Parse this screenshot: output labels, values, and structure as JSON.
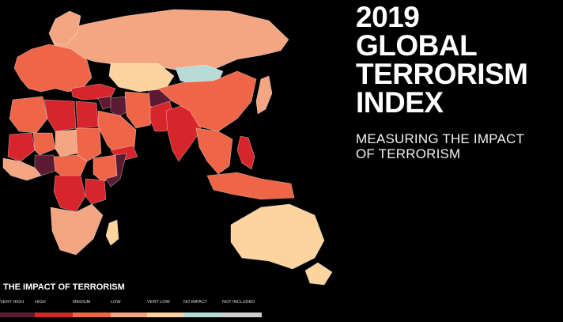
{
  "title": {
    "lines": [
      "2019",
      "GLOBAL",
      "TERRORISM",
      "INDEX"
    ],
    "subtitle_lines": [
      "MEASURING THE IMPACT",
      "OF TERRORISM"
    ]
  },
  "legend": {
    "title": "THE IMPACT OF TERRORISM",
    "items": [
      {
        "label": "VERY HIGH",
        "color": "#5c1a33"
      },
      {
        "label": "HIGH",
        "color": "#d7262b"
      },
      {
        "label": "MEDIUM",
        "color": "#ef6548"
      },
      {
        "label": "LOW",
        "color": "#f4a582"
      },
      {
        "label": "VERY LOW",
        "color": "#fdd49e"
      },
      {
        "label": "NO IMPACT",
        "color": "#b7dcd8"
      },
      {
        "label": "NOT INCLUDED",
        "color": "#cfcfcf"
      }
    ]
  },
  "regions": [
    {
      "name": "russia",
      "level": "LOW"
    },
    {
      "name": "scandinavia",
      "level": "LOW"
    },
    {
      "name": "europe",
      "level": "MEDIUM"
    },
    {
      "name": "turkey",
      "level": "HIGH"
    },
    {
      "name": "syria",
      "level": "VERY HIGH"
    },
    {
      "name": "iraq",
      "level": "VERY HIGH"
    },
    {
      "name": "iran",
      "level": "MEDIUM"
    },
    {
      "name": "saudi-arabia",
      "level": "MEDIUM"
    },
    {
      "name": "yemen",
      "level": "HIGH"
    },
    {
      "name": "afghanistan",
      "level": "VERY HIGH"
    },
    {
      "name": "pakistan",
      "level": "HIGH"
    },
    {
      "name": "india",
      "level": "HIGH"
    },
    {
      "name": "kazakhstan",
      "level": "VERY LOW"
    },
    {
      "name": "mongolia",
      "level": "NO IMPACT"
    },
    {
      "name": "china",
      "level": "MEDIUM"
    },
    {
      "name": "japan",
      "level": "LOW"
    },
    {
      "name": "southeast-asia",
      "level": "MEDIUM"
    },
    {
      "name": "philippines",
      "level": "HIGH"
    },
    {
      "name": "indonesia",
      "level": "MEDIUM"
    },
    {
      "name": "australia",
      "level": "VERY LOW"
    },
    {
      "name": "new-zealand",
      "level": "VERY LOW"
    },
    {
      "name": "algeria",
      "level": "MEDIUM"
    },
    {
      "name": "libya",
      "level": "HIGH"
    },
    {
      "name": "egypt",
      "level": "HIGH"
    },
    {
      "name": "mali",
      "level": "HIGH"
    },
    {
      "name": "niger",
      "level": "MEDIUM"
    },
    {
      "name": "chad",
      "level": "LOW"
    },
    {
      "name": "sudan",
      "level": "MEDIUM"
    },
    {
      "name": "ethiopia",
      "level": "MEDIUM"
    },
    {
      "name": "somalia",
      "level": "VERY HIGH"
    },
    {
      "name": "nigeria",
      "level": "VERY HIGH"
    },
    {
      "name": "west-africa",
      "level": "LOW"
    },
    {
      "name": "central-africa",
      "level": "MEDIUM"
    },
    {
      "name": "congo",
      "level": "HIGH"
    },
    {
      "name": "kenya",
      "level": "HIGH"
    },
    {
      "name": "southern-africa",
      "level": "LOW"
    },
    {
      "name": "madagascar",
      "level": "VERY LOW"
    }
  ]
}
